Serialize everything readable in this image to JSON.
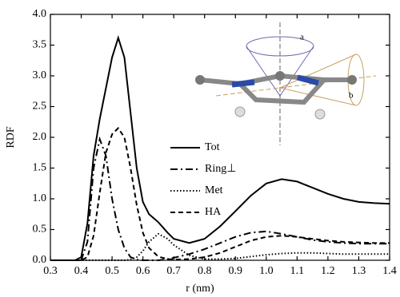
{
  "chart_data": {
    "type": "line",
    "xlabel": "r (nm)",
    "ylabel": "RDF",
    "annotations": [
      "a",
      "b"
    ],
    "x": [
      0.3,
      0.35,
      0.38,
      0.4,
      0.42,
      0.44,
      0.46,
      0.48,
      0.5,
      0.52,
      0.54,
      0.56,
      0.58,
      0.6,
      0.62,
      0.65,
      0.68,
      0.7,
      0.75,
      0.8,
      0.85,
      0.9,
      0.95,
      1.0,
      1.05,
      1.1,
      1.15,
      1.2,
      1.25,
      1.3,
      1.35,
      1.4
    ],
    "series": [
      {
        "name": "Tot",
        "color": "#000000",
        "style": "solid",
        "values": [
          0,
          0,
          0,
          0.05,
          0.6,
          1.7,
          2.3,
          2.8,
          3.3,
          3.62,
          3.3,
          2.4,
          1.5,
          0.95,
          0.75,
          0.62,
          0.45,
          0.35,
          0.28,
          0.35,
          0.55,
          0.8,
          1.05,
          1.25,
          1.32,
          1.28,
          1.18,
          1.08,
          1.0,
          0.95,
          0.93,
          0.92
        ]
      },
      {
        "name": "Ring⊥",
        "color": "#000000",
        "style": "dashdot",
        "values": [
          0,
          0,
          0,
          0,
          0.3,
          1.5,
          1.97,
          1.7,
          1.0,
          0.5,
          0.2,
          0.05,
          0.01,
          0,
          0,
          0,
          0.02,
          0.04,
          0.1,
          0.18,
          0.28,
          0.38,
          0.45,
          0.47,
          0.43,
          0.38,
          0.33,
          0.3,
          0.28,
          0.27,
          0.27,
          0.27
        ]
      },
      {
        "name": "Met",
        "color": "#000000",
        "style": "dotted",
        "values": [
          0,
          0,
          0,
          0,
          0,
          0,
          0,
          0,
          0,
          0,
          0,
          0.01,
          0.05,
          0.15,
          0.3,
          0.43,
          0.35,
          0.25,
          0.08,
          0.02,
          0.02,
          0.03,
          0.06,
          0.09,
          0.11,
          0.12,
          0.12,
          0.11,
          0.1,
          0.1,
          0.1,
          0.1
        ]
      },
      {
        "name": "HA",
        "color": "#000000",
        "style": "dashed",
        "values": [
          0,
          0,
          0,
          0,
          0.05,
          0.4,
          1.1,
          1.75,
          2.05,
          2.15,
          2.0,
          1.5,
          0.9,
          0.45,
          0.2,
          0.06,
          0.02,
          0.01,
          0.02,
          0.05,
          0.12,
          0.22,
          0.32,
          0.38,
          0.4,
          0.38,
          0.35,
          0.32,
          0.3,
          0.29,
          0.28,
          0.28
        ]
      }
    ],
    "xlim": [
      0.3,
      1.4
    ],
    "xticks": [
      0.3,
      0.4,
      0.5,
      0.6,
      0.7,
      0.8,
      0.9,
      {
        "value": 1.0,
        "label": "1.0"
      },
      1.1,
      1.2,
      1.3,
      1.4
    ],
    "ylim": [
      0,
      4.0
    ],
    "yticks": [
      {
        "value": 0,
        "label": "0.0"
      },
      0.5,
      {
        "value": 1.0,
        "label": "1.0"
      },
      1.5,
      {
        "value": 2.0,
        "label": "2.0"
      },
      2.5,
      {
        "value": 3.0,
        "label": "3.0"
      },
      3.5,
      {
        "value": 4.0,
        "label": "4.0"
      }
    ]
  }
}
